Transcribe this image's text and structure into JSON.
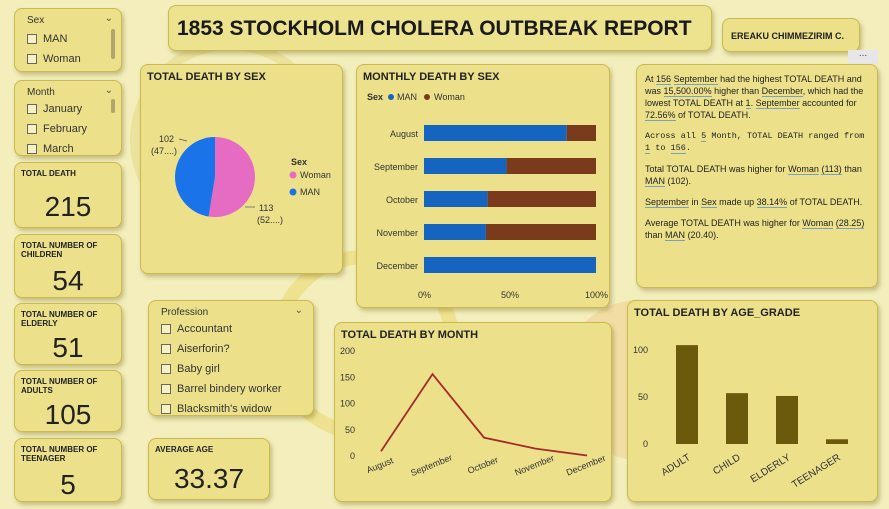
{
  "report": {
    "title": "1853 STOCKHOLM CHOLERA OUTBREAK REPORT",
    "author": "EREAKU CHIMMEZIRIM C.",
    "more_label": "..."
  },
  "slicers": {
    "sex": {
      "heading": "Sex",
      "items": [
        "MAN",
        "Woman"
      ]
    },
    "month": {
      "heading": "Month",
      "items": [
        "January",
        "February",
        "March"
      ]
    },
    "profession": {
      "heading": "Profession",
      "items": [
        "Accountant",
        "Aiserforin?",
        "Baby girl",
        "Barrel bindery worker",
        "Blacksmith's widow"
      ]
    }
  },
  "kpis": {
    "total_death": {
      "label": "TOTAL DEATH",
      "value": "215"
    },
    "children": {
      "label": "TOTAL NUMBER OF CHILDREN",
      "value": "54"
    },
    "elderly": {
      "label": "TOTAL NUMBER OF ELDERLY",
      "value": "51"
    },
    "adults": {
      "label": "TOTAL NUMBER OF ADULTS",
      "value": "105"
    },
    "teenager": {
      "label": "TOTAL NUMBER OF TEENAGER",
      "value": "5"
    },
    "average_age": {
      "label": "AVERAGE AGE",
      "value": "33.37"
    }
  },
  "colors": {
    "man": "#1a73e8",
    "woman": "#e56bc3",
    "woman_bar": "#7a3a1c",
    "man_bar": "#1565c0",
    "line": "#a52a2a",
    "age_bar": "#6b5a0c"
  },
  "charts": {
    "death_by_sex": {
      "title": "TOTAL DEATH BY SEX",
      "legend_title": "Sex",
      "label_man": "102",
      "label_man_pct": "(47....)",
      "label_woman": "113",
      "label_woman_pct": "(52....)"
    },
    "monthly_by_sex": {
      "title": "MONTHLY DEATH BY SEX",
      "legend_title": "Sex",
      "ticks": [
        "0%",
        "50%",
        "100%"
      ]
    },
    "by_month": {
      "title": "TOTAL DEATH BY MONTH",
      "yticks": [
        "0",
        "50",
        "100",
        "150",
        "200"
      ]
    },
    "by_age_grade": {
      "title": "TOTAL DEATH BY AGE_GRADE",
      "yticks": [
        "0",
        "50",
        "100"
      ]
    }
  },
  "narrative": {
    "p1": {
      "a": "At",
      "b": "156",
      "c": "September",
      "d": "had the highest TOTAL DEATH and was",
      "e": "15,500.00%",
      "f": "higher than",
      "g": "December",
      "h": ", which had the lowest TOTAL DEATH at",
      "i": "1",
      "j": "September",
      "k": "accounted for",
      "l": "72.56%",
      "m": "of TOTAL DEATH."
    },
    "p2": {
      "a": "Across all",
      "b": "5",
      "c": "Month, TOTAL DEATH ranged from",
      "d": "1",
      "e": "to",
      "f": "156"
    },
    "p3": {
      "a": "Total TOTAL DEATH was higher for",
      "b": "Woman",
      "c": "(113)",
      "d": "than",
      "e": "MAN",
      "f": "(102)."
    },
    "p4": {
      "a": "September",
      "b": "in",
      "c": "Sex",
      "d": "made up",
      "e": "38.14%",
      "f": "of TOTAL DEATH."
    },
    "p5": {
      "a": "Average TOTAL DEATH was higher for",
      "b": "Woman",
      "c": "(28.25)",
      "d": "than",
      "e": "MAN",
      "f": "(20.40)."
    }
  },
  "chart_data": [
    {
      "type": "pie",
      "title": "TOTAL DEATH BY SEX",
      "categories": [
        "Woman",
        "MAN"
      ],
      "values": [
        113,
        102
      ]
    },
    {
      "type": "bar",
      "title": "MONTHLY DEATH BY SEX",
      "orientation": "horizontal",
      "stacked": "100%",
      "categories": [
        "August",
        "September",
        "October",
        "November",
        "December"
      ],
      "series": [
        {
          "name": "MAN",
          "values": [
            83,
            48,
            37,
            36,
            100
          ]
        },
        {
          "name": "Woman",
          "values": [
            17,
            52,
            63,
            64,
            0
          ]
        }
      ],
      "xlim": [
        0,
        100
      ]
    },
    {
      "type": "line",
      "title": "TOTAL DEATH BY MONTH",
      "categories": [
        "August",
        "September",
        "October",
        "November",
        "December"
      ],
      "values": [
        9,
        156,
        35,
        14,
        1
      ],
      "ylim": [
        0,
        200
      ]
    },
    {
      "type": "bar",
      "title": "TOTAL DEATH BY AGE_GRADE",
      "categories": [
        "ADULT",
        "CHILD",
        "ELDERLY",
        "TEENAGER"
      ],
      "values": [
        105,
        54,
        51,
        5
      ],
      "ylim": [
        0,
        120
      ]
    }
  ]
}
